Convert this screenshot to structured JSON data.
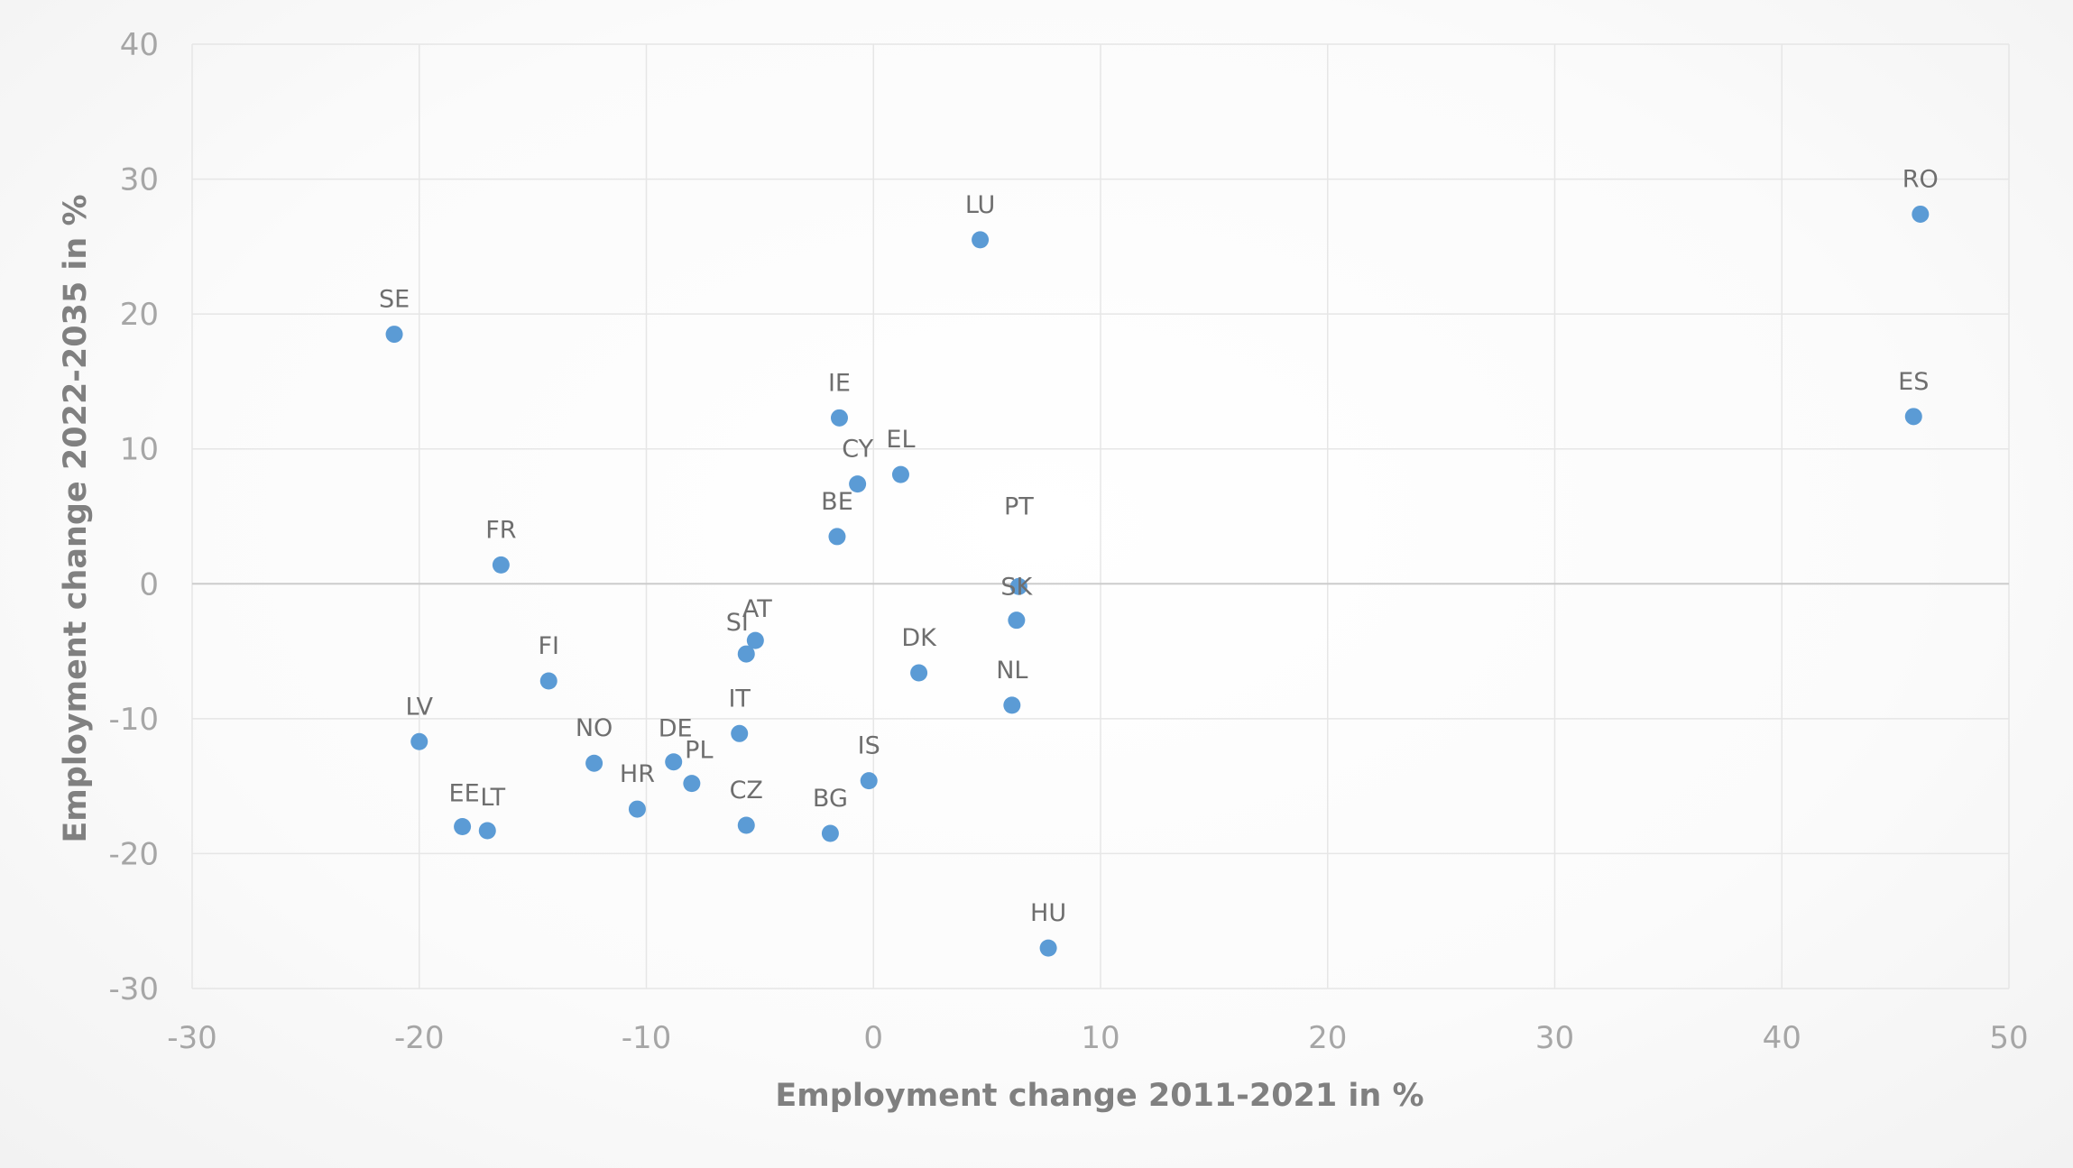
{
  "chart_data": {
    "type": "scatter",
    "xlabel": "Employment change 2011-2021 in %",
    "ylabel": "Employment change 2022-2035 in %",
    "xlim": [
      -30,
      50
    ],
    "ylim": [
      -30,
      40
    ],
    "xticks": [
      "-30",
      "-20",
      "-10",
      "0",
      "10",
      "20",
      "30",
      "40",
      "50"
    ],
    "yticks": [
      "40",
      "30",
      "20",
      "10",
      "0",
      "-10",
      "-20",
      "-30"
    ],
    "grid": true,
    "legend": "none",
    "point_color": "#5b9bd5",
    "points": [
      {
        "label": "SE",
        "x": -21.1,
        "y": 18.5
      },
      {
        "label": "LU",
        "x": 4.7,
        "y": 25.5
      },
      {
        "label": "RO",
        "x": 46.1,
        "y": 27.4
      },
      {
        "label": "ES",
        "x": 45.8,
        "y": 12.4
      },
      {
        "label": "IE",
        "x": -1.5,
        "y": 12.3
      },
      {
        "label": "CY",
        "x": -0.7,
        "y": 7.4
      },
      {
        "label": "EL",
        "x": 1.2,
        "y": 8.1
      },
      {
        "label": "BE",
        "x": -1.6,
        "y": 3.5
      },
      {
        "label": "FR",
        "x": -16.4,
        "y": 1.4
      },
      {
        "label": "PT",
        "x": 6.4,
        "y": -0.2
      },
      {
        "label": "SK",
        "x": 6.3,
        "y": -2.7
      },
      {
        "label": "AT",
        "x": -5.2,
        "y": -4.2
      },
      {
        "label": "SI",
        "x": -5.6,
        "y": -5.2
      },
      {
        "label": "FI",
        "x": -14.3,
        "y": -7.2
      },
      {
        "label": "DK",
        "x": 2.0,
        "y": -6.6
      },
      {
        "label": "NL",
        "x": 6.1,
        "y": -9.0
      },
      {
        "label": "LV",
        "x": -20.0,
        "y": -11.7
      },
      {
        "label": "IT",
        "x": -5.9,
        "y": -11.1
      },
      {
        "label": "NO",
        "x": -12.3,
        "y": -13.3
      },
      {
        "label": "DE",
        "x": -8.8,
        "y": -13.2
      },
      {
        "label": "PL",
        "x": -8.0,
        "y": -14.8
      },
      {
        "label": "IS",
        "x": -0.2,
        "y": -14.6
      },
      {
        "label": "HR",
        "x": -10.4,
        "y": -16.7
      },
      {
        "label": "EE",
        "x": -18.1,
        "y": -18.0
      },
      {
        "label": "LT",
        "x": -17.0,
        "y": -18.3
      },
      {
        "label": "CZ",
        "x": -5.6,
        "y": -17.9
      },
      {
        "label": "BG",
        "x": -1.9,
        "y": -18.5
      },
      {
        "label": "HU",
        "x": 7.7,
        "y": -27.0
      }
    ]
  }
}
